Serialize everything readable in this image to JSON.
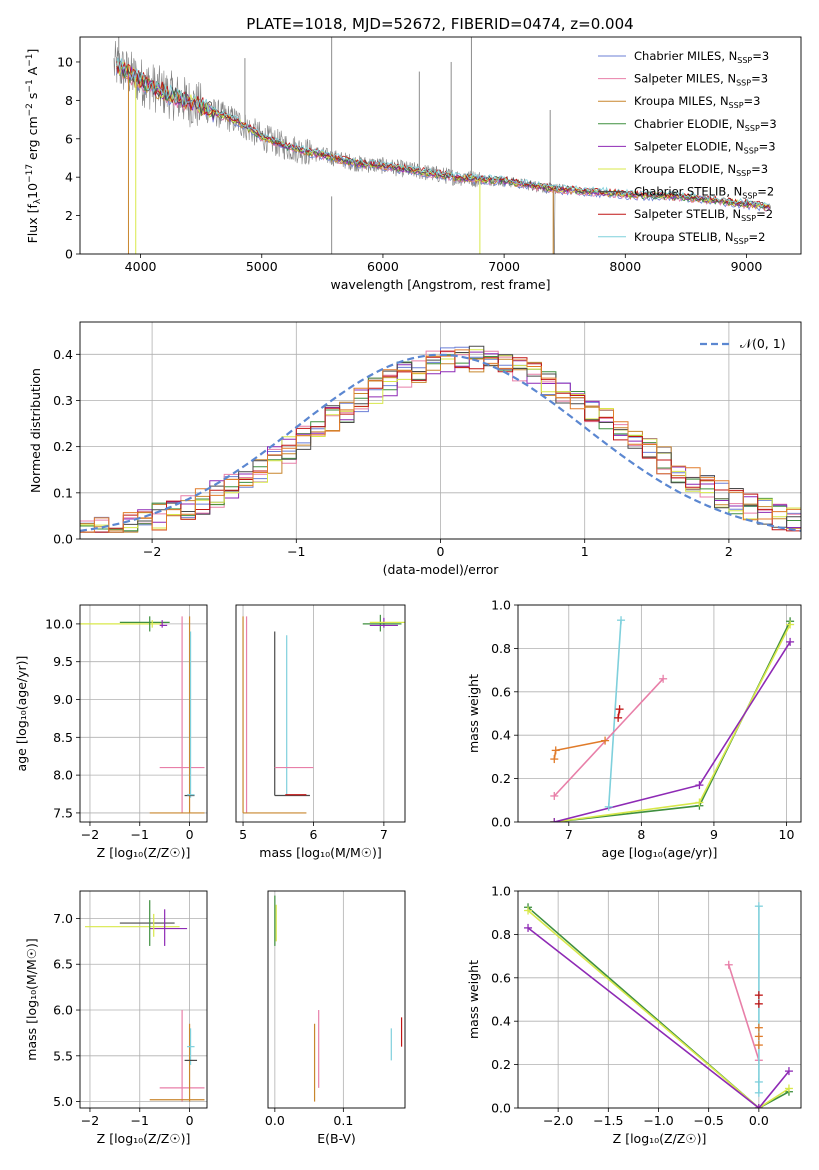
{
  "figure_title": "PLATE=1018, MJD=52672, FIBERID=0474, z=0.004",
  "colors": {
    "data": "#808080",
    "Chabrier MILES": "#6b7fd6",
    "Salpeter MILES": "#e87fa8",
    "Kroupa MILES": "#c8862d",
    "Chabrier ELODIE": "#3f8f3f",
    "Salpeter ELODIE": "#8e2ab5",
    "Kroupa ELODIE": "#d8e84a",
    "Chabrier STELIB": "#4a4a4a",
    "Salpeter STELIB": "#c01515",
    "Kroupa STELIB": "#7fd0dc",
    "Orange": "#e07b2a",
    "Normal": "#5b87d1"
  },
  "chart_data": [
    {
      "id": "spectrum",
      "type": "line",
      "title": "PLATE=1018, MJD=52672, FIBERID=0474, z=0.004",
      "xlabel": "wavelength [Angstrom, rest frame]",
      "ylabel_parts": [
        "Flux [f",
        "λ",
        "10",
        "−17",
        " erg cm",
        "−2",
        " s",
        "−1",
        " A",
        "−1",
        "]"
      ],
      "xlim": [
        3500,
        9450
      ],
      "ylim": [
        0,
        11.3
      ],
      "xticks": [
        4000,
        5000,
        6000,
        7000,
        8000,
        9000
      ],
      "yticks": [
        0,
        2,
        4,
        6,
        8,
        10
      ],
      "continuum_x": [
        3800,
        4000,
        4200,
        4400,
        4600,
        4800,
        5000,
        5200,
        5400,
        5600,
        5800,
        6000,
        6200,
        6400,
        6600,
        6800,
        7000,
        7200,
        7400,
        7600,
        7800,
        8000,
        8200,
        8400,
        8600,
        8800,
        9000,
        9200
      ],
      "continuum_y": [
        9.8,
        9.0,
        8.4,
        7.9,
        7.4,
        6.9,
        6.1,
        5.6,
        5.3,
        5.0,
        4.7,
        4.6,
        4.4,
        4.2,
        4.0,
        3.9,
        3.8,
        3.6,
        3.4,
        3.3,
        3.2,
        3.1,
        3.05,
        3.0,
        2.9,
        2.75,
        2.6,
        2.45
      ],
      "emission_lines_x": [
        3820,
        4861,
        5577,
        6300,
        6563,
        6730,
        7380
      ],
      "emission_lines_peak": [
        11.3,
        10.2,
        11.3,
        9.5,
        10.0,
        11.3,
        7.5
      ],
      "legend": [
        {
          "label": "Chabrier MILES, N",
          "sub": "SSP",
          "tail": "=3",
          "color": "#6b7fd6"
        },
        {
          "label": "Salpeter MILES, N",
          "sub": "SSP",
          "tail": "=3",
          "color": "#e87fa8"
        },
        {
          "label": "Kroupa MILES, N",
          "sub": "SSP",
          "tail": "=3",
          "color": "#c8862d"
        },
        {
          "label": "Chabrier ELODIE, N",
          "sub": "SSP",
          "tail": "=3",
          "color": "#3f8f3f"
        },
        {
          "label": "Salpeter ELODIE, N",
          "sub": "SSP",
          "tail": "=3",
          "color": "#8e2ab5"
        },
        {
          "label": "Kroupa ELODIE, N",
          "sub": "SSP",
          "tail": "=3",
          "color": "#d8e84a"
        },
        {
          "label": "Chabrier STELIB, N",
          "sub": "SSP",
          "tail": "=2",
          "color": "#4a4a4a"
        },
        {
          "label": "Salpeter STELIB, N",
          "sub": "SSP",
          "tail": "=2",
          "color": "#c01515"
        },
        {
          "label": "Kroupa STELIB, N",
          "sub": "SSP",
          "tail": "=2",
          "color": "#7fd0dc"
        }
      ]
    },
    {
      "id": "residuals",
      "type": "line",
      "xlabel": "(data-model)/error",
      "ylabel": "Normed distribution",
      "xlim": [
        -2.5,
        2.5
      ],
      "ylim": [
        0,
        0.47
      ],
      "xticks": [
        -2,
        -1,
        0,
        1,
        2
      ],
      "yticks": [
        0.0,
        0.1,
        0.2,
        0.3,
        0.4
      ],
      "legend": "𝒩(0, 1)",
      "normal_mean": 0,
      "normal_sigma": 1,
      "bin_width": 0.1,
      "hist_colors": [
        "#6b7fd6",
        "#e87fa8",
        "#c8862d",
        "#3f8f3f",
        "#8e2ab5",
        "#d8e84a",
        "#4a4a4a",
        "#c01515",
        "#e07b2a"
      ]
    },
    {
      "id": "age_Z",
      "type": "scatter",
      "xlabel": "Z [log₁₀(Z/Z☉)]",
      "ylabel": "age  [log₁₀(age/yr)]",
      "xlim": [
        -2.2,
        0.35
      ],
      "ylim": [
        7.38,
        10.25
      ],
      "xticks": [
        -2,
        -1,
        0
      ],
      "yticks": [
        7.5,
        8.0,
        8.5,
        9.0,
        9.5,
        10.0
      ]
    },
    {
      "id": "age_mass",
      "type": "scatter",
      "xlabel": "mass [log₁₀(M/M☉)]",
      "xlim": [
        4.9,
        7.3
      ],
      "ylim": [
        7.38,
        10.25
      ],
      "xticks": [
        5,
        6,
        7
      ]
    },
    {
      "id": "weight_age",
      "type": "line",
      "xlabel": "age  [log₁₀(age/yr)]",
      "ylabel": "mass weight",
      "xlim": [
        6.3,
        10.2
      ],
      "ylim": [
        0,
        1.0
      ],
      "xticks": [
        7,
        8,
        9,
        10
      ],
      "yticks": [
        0.0,
        0.2,
        0.4,
        0.6,
        0.8,
        1.0
      ],
      "series": [
        {
          "color": "#3f8f3f",
          "x": [
            6.8,
            8.8,
            10.05
          ],
          "y": [
            0.0,
            0.075,
            0.925
          ]
        },
        {
          "color": "#d8e84a",
          "x": [
            6.8,
            8.8,
            10.05
          ],
          "y": [
            0.0,
            0.09,
            0.91
          ]
        },
        {
          "color": "#8e2ab5",
          "x": [
            6.8,
            8.8,
            10.05
          ],
          "y": [
            0.0,
            0.17,
            0.83
          ]
        },
        {
          "color": "#7fd0dc",
          "x": [
            7.55,
            7.72
          ],
          "y": [
            0.07,
            0.93
          ]
        },
        {
          "color": "#e87fa8",
          "x": [
            6.8,
            8.3
          ],
          "y": [
            0.12,
            0.66
          ]
        },
        {
          "color": "#e07b2a",
          "x": [
            6.8,
            6.82,
            7.5
          ],
          "y": [
            0.29,
            0.33,
            0.375
          ]
        },
        {
          "color": "#c01515",
          "x": [
            7.68,
            7.7
          ],
          "y": [
            0.48,
            0.52
          ]
        }
      ]
    },
    {
      "id": "mass_Z",
      "type": "scatter",
      "xlabel": "Z [log₁₀(Z/Z☉)]",
      "ylabel": "mass [log₁₀(M/M☉)]",
      "xlim": [
        -2.2,
        0.35
      ],
      "ylim": [
        4.93,
        7.3
      ],
      "xticks": [
        -2,
        -1,
        0
      ],
      "yticks": [
        5.0,
        5.5,
        6.0,
        6.5,
        7.0
      ]
    },
    {
      "id": "mass_ebv",
      "type": "scatter",
      "xlabel": "E(B-V)",
      "xlim": [
        -0.01,
        0.19
      ],
      "ylim": [
        4.93,
        7.3
      ],
      "xticks": [
        0.0,
        0.1
      ]
    },
    {
      "id": "weight_Z",
      "type": "line",
      "xlabel": "Z [log₁₀(Z/Z☉)]",
      "ylabel": "mass weight",
      "xlim": [
        -2.4,
        0.42
      ],
      "ylim": [
        0,
        1.0
      ],
      "xticks": [
        -2.0,
        -1.5,
        -1.0,
        -0.5,
        0.0
      ],
      "yticks": [
        0.0,
        0.2,
        0.4,
        0.6,
        0.8,
        1.0
      ],
      "series": [
        {
          "color": "#3f8f3f",
          "x": [
            -2.3,
            0.0,
            0.3
          ],
          "y": [
            0.925,
            0.0,
            0.075
          ]
        },
        {
          "color": "#d8e84a",
          "x": [
            -2.3,
            0.0,
            0.3
          ],
          "y": [
            0.91,
            0.0,
            0.09
          ]
        },
        {
          "color": "#8e2ab5",
          "x": [
            -2.3,
            0.0,
            0.3
          ],
          "y": [
            0.83,
            0.0,
            0.17
          ]
        },
        {
          "color": "#e87fa8",
          "x": [
            -0.3,
            0.0
          ],
          "y": [
            0.66,
            0.22
          ]
        },
        {
          "color": "#7fd0dc",
          "x": [
            0.0,
            0.0
          ],
          "y": [
            0.07,
            0.93
          ]
        }
      ]
    }
  ]
}
